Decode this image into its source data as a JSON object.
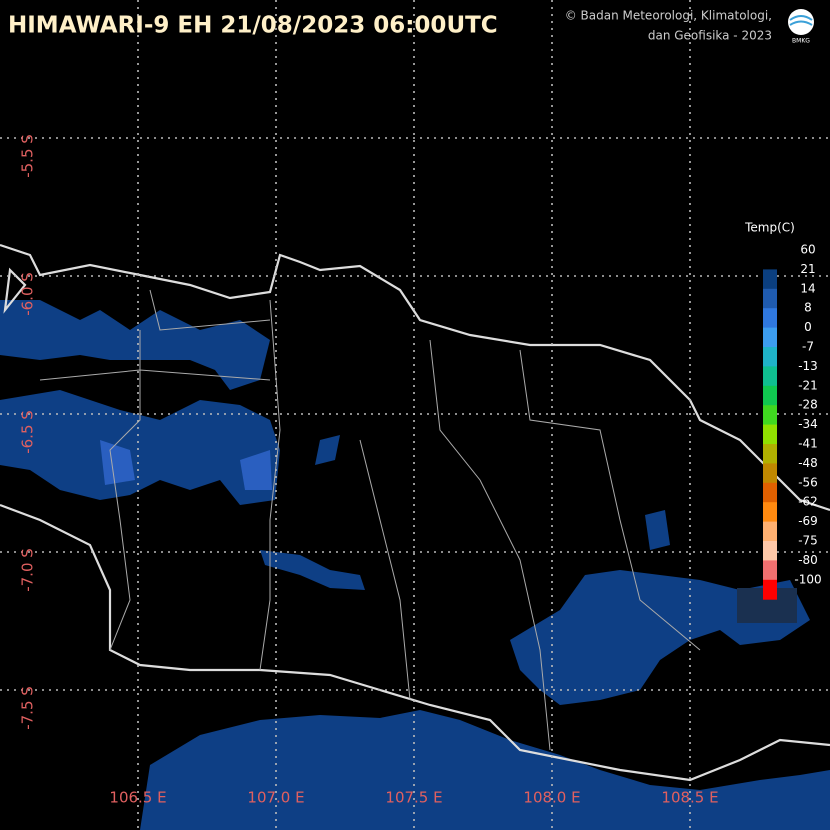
{
  "header": {
    "title": "HIMAWARI-9 EH  21/08/2023  06:00UTC",
    "credit": [
      "© Badan Meteorologi, Klimatologi,",
      "dan Geofisika -  2023"
    ],
    "logo": "BMKG"
  },
  "legend": {
    "title": "Temp(C)",
    "labels": [
      "60",
      "21",
      "14",
      "8",
      "0",
      "-7",
      "-13",
      "-21",
      "-28",
      "-34",
      "-41",
      "-48",
      "-56",
      "-62",
      "-69",
      "-75",
      "-80",
      "-100"
    ],
    "colors": [
      "#0b3f80",
      "#1f5bb0",
      "#2f78e0",
      "#3c9df0",
      "#1fb3c8",
      "#0fbf90",
      "#10c850",
      "#40d820",
      "#90e000",
      "#b0b000",
      "#c08800",
      "#e06000",
      "#ff8a10",
      "#ffb070",
      "#ffc8a8",
      "#f07070",
      "#ff0000"
    ]
  },
  "lon_labels": [
    "106.5 E",
    "107.0 E",
    "107.5 E",
    "108.0 E",
    "108.5 E"
  ],
  "lat_labels": [
    "-5.5 S",
    "-6.0 S",
    "-6.5 S",
    "-7.0 S",
    "-7.5 S"
  ]
}
